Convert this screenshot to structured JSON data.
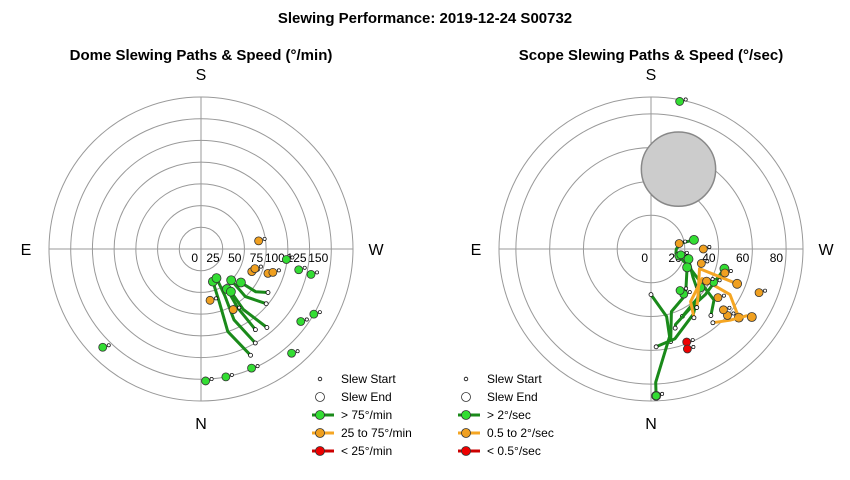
{
  "title": "Slewing Performance: 2019-12-24 S00732",
  "colors": {
    "fast": "#1a8a1a",
    "fast_fill": "#33dd33",
    "medium": "#f5a623",
    "medium_fill": "#f0a020",
    "slow": "#cc0000",
    "slow_fill": "#ee0000",
    "grid": "#999999",
    "moon": "#cccccc"
  },
  "chart_data": [
    {
      "id": "dome",
      "type": "polar",
      "subtitle": "Dome Slewing Paths & Speed (°/min)",
      "cardinals": {
        "top": "S",
        "bottom": "N",
        "left": "E",
        "right": "W"
      },
      "r_scale": "inverse",
      "r_range": [
        175,
        0
      ],
      "ring_values": [
        150,
        125,
        100,
        75,
        50,
        25,
        0
      ],
      "ring_labels": [
        "150",
        "125",
        "100",
        "75",
        "50",
        "25",
        "0"
      ],
      "grid": true,
      "legend": {
        "position": "bottom-right",
        "items": [
          {
            "label": "Slew Start",
            "kind": "start"
          },
          {
            "label": "Slew End",
            "kind": "end"
          },
          {
            "label": "> 75°/min",
            "kind": "fast"
          },
          {
            "label": "25 to 75°/min",
            "kind": "medium"
          },
          {
            "label": "< 25°/min",
            "kind": "slow"
          }
        ]
      },
      "paths": [
        {
          "speed": "fast",
          "points": [
            [
              155,
              135
            ],
            [
              162,
              100
            ],
            [
              161,
              65
            ],
            [
              160,
              40
            ]
          ]
        },
        {
          "speed": "fast",
          "points": [
            [
              150,
              125
            ],
            [
              155,
              90
            ],
            [
              153,
              60
            ],
            [
              152,
              38
            ]
          ]
        },
        {
          "speed": "fast",
          "points": [
            [
              146,
              112
            ],
            [
              148,
              80
            ],
            [
              147,
              55
            ]
          ]
        },
        {
          "speed": "fast",
          "points": [
            [
              130,
              98
            ],
            [
              137,
              75
            ],
            [
              136,
              50
            ]
          ]
        },
        {
          "speed": "fast",
          "points": [
            [
              140,
              118
            ],
            [
              145,
              85
            ],
            [
              145,
              60
            ]
          ]
        },
        {
          "speed": "fast",
          "points": [
            [
              123,
              92
            ],
            [
              128,
              80
            ],
            [
              130,
              60
            ]
          ]
        }
      ],
      "points": [
        {
          "azimuth": 97,
          "altitude": 99,
          "speed": "fast",
          "role": "end"
        },
        {
          "azimuth": 103,
          "altitude": 130,
          "speed": "fast",
          "role": "end"
        },
        {
          "azimuth": 102,
          "altitude": 115,
          "speed": "fast",
          "role": "end"
        },
        {
          "azimuth": 120,
          "altitude": 150,
          "speed": "fast",
          "role": "end"
        },
        {
          "azimuth": 126,
          "altitude": 142,
          "speed": "fast",
          "role": "end"
        },
        {
          "azimuth": 139,
          "altitude": 159,
          "speed": "fast",
          "role": "end"
        },
        {
          "azimuth": 157,
          "altitude": 149,
          "speed": "fast",
          "role": "end"
        },
        {
          "azimuth": 178,
          "altitude": 152,
          "speed": "fast",
          "role": "end"
        },
        {
          "azimuth": 169,
          "altitude": 150,
          "speed": "fast",
          "role": "end"
        },
        {
          "azimuth": 225,
          "altitude": 160,
          "speed": "fast",
          "role": "end"
        },
        {
          "azimuth": 152,
          "altitude": 79,
          "speed": "medium",
          "role": "end"
        },
        {
          "azimuth": 170,
          "altitude": 60,
          "speed": "medium",
          "role": "end"
        },
        {
          "azimuth": 114,
          "altitude": 64,
          "speed": "medium",
          "role": "end"
        },
        {
          "azimuth": 110,
          "altitude": 66,
          "speed": "medium",
          "role": "end"
        },
        {
          "azimuth": 110,
          "altitude": 82,
          "speed": "medium",
          "role": "end"
        },
        {
          "azimuth": 108,
          "altitude": 87,
          "speed": "medium",
          "role": "end"
        },
        {
          "azimuth": 82,
          "altitude": 67,
          "speed": "medium",
          "role": "end"
        }
      ]
    },
    {
      "id": "scope",
      "type": "polar",
      "subtitle": "Scope Slewing Paths & Speed (°/sec)",
      "cardinals": {
        "top": "S",
        "bottom": "N",
        "left": "E",
        "right": "W"
      },
      "r_scale": "inverse",
      "r_range": [
        90,
        0
      ],
      "ring_values": [
        80,
        60,
        40,
        20,
        0
      ],
      "ring_labels": [
        "80",
        "60",
        "40",
        "20",
        "0"
      ],
      "grid": true,
      "moon": {
        "azimuth": 19,
        "altitude": 50,
        "radius_deg": 11
      },
      "legend": {
        "position": "bottom-right",
        "items": [
          {
            "label": "Slew Start",
            "kind": "start"
          },
          {
            "label": "Slew End",
            "kind": "end"
          },
          {
            "label": "> 2°/sec",
            "kind": "fast"
          },
          {
            "label": "0.5 to 2°/sec",
            "kind": "medium"
          },
          {
            "label": "< 0.5°/sec",
            "kind": "slow"
          }
        ]
      },
      "paths": [
        {
          "speed": "fast",
          "points": [
            [
              180,
              27
            ],
            [
              167,
              41
            ],
            [
              168,
              53
            ],
            [
              178,
              79
            ],
            [
              178,
              87
            ]
          ]
        },
        {
          "speed": "fast",
          "points": [
            [
              138,
              53
            ],
            [
              129,
              48
            ],
            [
              114,
              24
            ],
            [
              100,
              15
            ],
            [
              90,
              15
            ],
            [
              79,
              18
            ],
            [
              78,
              26
            ]
          ]
        },
        {
          "speed": "fast",
          "points": [
            [
              155,
              44
            ],
            [
              134,
              40
            ],
            [
              124,
              30
            ],
            [
              105,
              23
            ]
          ]
        },
        {
          "speed": "fast",
          "points": [
            [
              168,
              56
            ],
            [
              162,
              39
            ],
            [
              143,
              34
            ],
            [
              117,
              24
            ]
          ]
        },
        {
          "speed": "fast",
          "points": [
            [
              177,
              58
            ],
            [
              165,
              55
            ],
            [
              147,
              46
            ],
            [
              128,
              37
            ]
          ]
        },
        {
          "speed": "fast",
          "points": [
            [
              163,
              49
            ],
            [
              162,
              47
            ],
            [
              146,
              42
            ],
            [
              130,
              42
            ],
            [
              105,
              45
            ]
          ]
        },
        {
          "speed": "medium",
          "points": [
            [
              148,
              48
            ],
            [
              143,
              39
            ],
            [
              120,
              35
            ],
            [
              120,
              54
            ],
            [
              128,
              66
            ]
          ]
        },
        {
          "speed": "medium",
          "points": [
            [
              142,
              44
            ],
            [
              136,
              40
            ],
            [
              112,
              31
            ],
            [
              112,
              55
            ]
          ]
        },
        {
          "speed": "medium",
          "points": [
            [
              140,
              57
            ],
            [
              132,
              63
            ],
            [
              125,
              69
            ],
            [
              124,
              72
            ]
          ]
        }
      ],
      "points": [
        {
          "azimuth": 178,
          "altitude": 87,
          "speed": "fast",
          "role": "end"
        },
        {
          "azimuth": 144,
          "altitude": 33,
          "speed": "fast",
          "role": "end"
        },
        {
          "azimuth": 145,
          "altitude": 30,
          "speed": "fast",
          "role": "end"
        },
        {
          "azimuth": 118,
          "altitude": 42,
          "speed": "fast",
          "role": "end"
        },
        {
          "azimuth": 104,
          "altitude": 17,
          "speed": "fast",
          "role": "end"
        },
        {
          "azimuth": 101,
          "altitude": 18,
          "speed": "fast",
          "role": "end"
        },
        {
          "azimuth": 11,
          "altitude": 89,
          "speed": "fast",
          "role": "end"
        },
        {
          "azimuth": 79,
          "altitude": 17,
          "speed": "medium",
          "role": "end"
        },
        {
          "azimuth": 112,
          "altitude": 69,
          "speed": "medium",
          "role": "end"
        },
        {
          "azimuth": 131,
          "altitude": 60,
          "speed": "medium",
          "role": "end"
        },
        {
          "azimuth": 120,
          "altitude": 38,
          "speed": "medium",
          "role": "end"
        },
        {
          "azimuth": 130,
          "altitude": 56,
          "speed": "medium",
          "role": "end"
        },
        {
          "azimuth": 126,
          "altitude": 49,
          "speed": "medium",
          "role": "end"
        },
        {
          "azimuth": 106,
          "altitude": 31,
          "speed": "medium",
          "role": "end"
        },
        {
          "azimuth": 90,
          "altitude": 31,
          "speed": "medium",
          "role": "end"
        },
        {
          "azimuth": 108,
          "altitude": 46,
          "speed": "medium",
          "role": "end"
        },
        {
          "azimuth": 159,
          "altitude": 59,
          "speed": "slow",
          "role": "end"
        },
        {
          "azimuth": 160,
          "altitude": 63,
          "speed": "slow",
          "role": "end"
        }
      ]
    }
  ]
}
